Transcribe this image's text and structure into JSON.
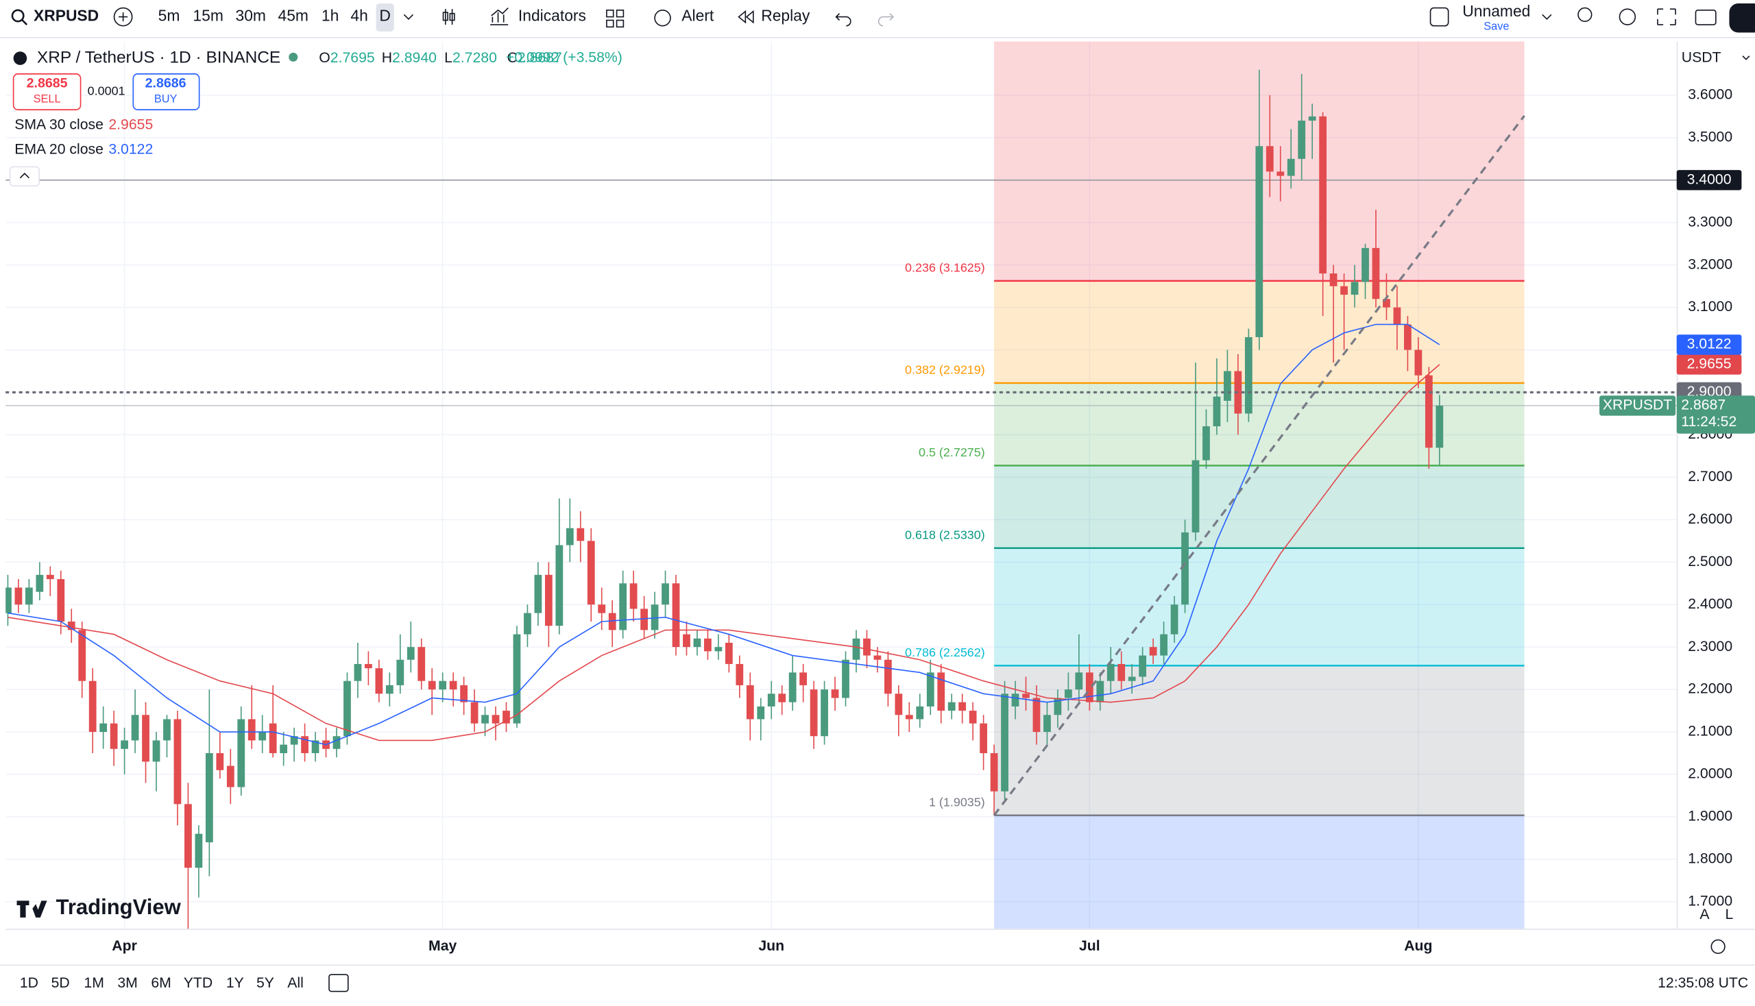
{
  "toolbar": {
    "symbol": "XRPUSD",
    "intervals": [
      "5m",
      "15m",
      "30m",
      "45m",
      "1h",
      "4h",
      "D"
    ],
    "active_interval": "D",
    "indicators": "Indicators",
    "alert": "Alert",
    "replay": "Replay",
    "layout_name": "Unnamed",
    "save": "Save"
  },
  "legend": {
    "title": "XRP / TetherUS · 1D · BINANCE",
    "ohlc": [
      {
        "label": "O",
        "value": "2.7695"
      },
      {
        "label": "H",
        "value": "2.8940"
      },
      {
        "label": "L",
        "value": "2.7280"
      },
      {
        "label": "C",
        "value": "2.8687"
      }
    ],
    "change": "+0.0992 (+3.58%)",
    "sell": {
      "price": "2.8685",
      "label": "SELL"
    },
    "spread": "0.0001",
    "buy": {
      "price": "2.8686",
      "label": "BUY"
    }
  },
  "chart_data": {
    "type": "candlestick",
    "currency": "USDT",
    "logo": "TradingView",
    "grid": true,
    "ylim": [
      1.6364,
      3.7265
    ],
    "yticks": [
      {
        "value": 1.7,
        "label": "1.7000"
      },
      {
        "value": 1.8,
        "label": "1.8000"
      },
      {
        "value": 1.9,
        "label": "1.9000"
      },
      {
        "value": 2.0,
        "label": "2.0000"
      },
      {
        "value": 2.1,
        "label": "2.1000"
      },
      {
        "value": 2.2,
        "label": "2.2000"
      },
      {
        "value": 2.3,
        "label": "2.3000"
      },
      {
        "value": 2.4,
        "label": "2.4000"
      },
      {
        "value": 2.5,
        "label": "2.5000"
      },
      {
        "value": 2.6,
        "label": "2.6000"
      },
      {
        "value": 2.7,
        "label": "2.7000"
      },
      {
        "value": 2.8,
        "label": "2.8000"
      },
      {
        "value": 2.9,
        "label": "2.9000"
      },
      {
        "value": 3.0,
        "label": "3.0000"
      },
      {
        "value": 3.1,
        "label": "3.1000"
      },
      {
        "value": 3.2,
        "label": "3.2000"
      },
      {
        "value": 3.3,
        "label": "3.3000"
      },
      {
        "value": 3.4,
        "label": "3.4000"
      },
      {
        "value": 3.5,
        "label": "3.5000"
      },
      {
        "value": 3.6,
        "label": "3.6000"
      }
    ],
    "categories": [
      null,
      null,
      null,
      null,
      null,
      null,
      null,
      null,
      null,
      null,
      null,
      "Apr",
      null,
      null,
      null,
      null,
      null,
      null,
      null,
      null,
      null,
      null,
      null,
      null,
      null,
      null,
      null,
      null,
      null,
      null,
      null,
      null,
      null,
      null,
      null,
      null,
      null,
      null,
      null,
      null,
      null,
      "May",
      null,
      null,
      null,
      null,
      null,
      null,
      null,
      null,
      null,
      null,
      null,
      null,
      null,
      null,
      null,
      null,
      null,
      null,
      null,
      null,
      null,
      null,
      null,
      null,
      null,
      null,
      null,
      null,
      null,
      null,
      "Jun",
      null,
      null,
      null,
      null,
      null,
      null,
      null,
      null,
      null,
      null,
      null,
      null,
      null,
      null,
      null,
      null,
      null,
      null,
      null,
      null,
      null,
      null,
      null,
      null,
      null,
      null,
      null,
      null,
      null,
      "Jul",
      null,
      null,
      null,
      null,
      null,
      null,
      null,
      null,
      null,
      null,
      null,
      null,
      null,
      null,
      null,
      null,
      null,
      null,
      null,
      null,
      null,
      null,
      null,
      null,
      null,
      null,
      null,
      null,
      null,
      null,
      "Aug",
      null,
      null
    ],
    "series": [
      {
        "name": "XRPUSDT",
        "up_color": "#4a9a7e",
        "down_color": "#e24c4f",
        "open": [
          2.38,
          2.44,
          2.4,
          2.43,
          2.47,
          2.46,
          2.36,
          2.34,
          2.22,
          2.1,
          2.12,
          2.06,
          2.08,
          2.14,
          2.03,
          2.08,
          2.13,
          1.93,
          1.78,
          1.84,
          2.05,
          2.02,
          1.97,
          2.13,
          2.08,
          2.12,
          2.05,
          2.07,
          2.09,
          2.05,
          2.08,
          2.06,
          2.09,
          2.22,
          2.26,
          2.25,
          2.19,
          2.21,
          2.27,
          2.3,
          2.22,
          2.2,
          2.22,
          2.21,
          2.17,
          2.12,
          2.14,
          2.15,
          2.12,
          2.33,
          2.38,
          2.47,
          2.35,
          2.54,
          2.58,
          2.55,
          2.4,
          2.38,
          2.34,
          2.45,
          2.39,
          2.34,
          2.4,
          2.45,
          2.33,
          2.3,
          2.32,
          2.29,
          2.31,
          2.26,
          2.21,
          2.13,
          2.16,
          2.19,
          2.17,
          2.24,
          2.2,
          2.09,
          2.2,
          2.18,
          2.27,
          2.32,
          2.28,
          2.27,
          2.19,
          2.14,
          2.13,
          2.16,
          2.24,
          2.15,
          2.17,
          2.15,
          2.12,
          2.05,
          1.96,
          2.16,
          2.19,
          2.18,
          2.1,
          2.14,
          2.18,
          2.2,
          2.24,
          2.17,
          2.22,
          2.26,
          2.22,
          2.23,
          2.3,
          2.28,
          2.33,
          2.4,
          2.57,
          2.74,
          2.82,
          2.88,
          2.95,
          2.85,
          3.03,
          3.48,
          3.42,
          3.41,
          3.45,
          3.54,
          3.55,
          3.18,
          3.15,
          3.13,
          3.16,
          3.24,
          3.12,
          3.1,
          3.06,
          3.0,
          2.94,
          2.7695
        ],
        "high": [
          2.47,
          2.46,
          2.46,
          2.5,
          2.49,
          2.48,
          2.39,
          2.36,
          2.25,
          2.16,
          2.15,
          2.11,
          2.2,
          2.17,
          2.1,
          2.14,
          2.15,
          1.98,
          1.88,
          2.2,
          2.1,
          2.06,
          2.16,
          2.21,
          2.14,
          2.21,
          2.1,
          2.11,
          2.12,
          2.1,
          2.11,
          2.11,
          2.24,
          2.31,
          2.29,
          2.27,
          2.24,
          2.33,
          2.36,
          2.32,
          2.25,
          2.24,
          2.24,
          2.23,
          2.2,
          2.16,
          2.16,
          2.17,
          2.35,
          2.4,
          2.5,
          2.5,
          2.65,
          2.65,
          2.62,
          2.58,
          2.44,
          2.41,
          2.48,
          2.48,
          2.42,
          2.43,
          2.48,
          2.47,
          2.36,
          2.34,
          2.34,
          2.33,
          2.33,
          2.28,
          2.24,
          2.18,
          2.22,
          2.21,
          2.28,
          2.26,
          2.22,
          2.22,
          2.23,
          2.29,
          2.34,
          2.34,
          2.3,
          2.29,
          2.21,
          2.17,
          2.19,
          2.27,
          2.26,
          2.19,
          2.19,
          2.17,
          2.14,
          2.07,
          2.22,
          2.22,
          2.23,
          2.21,
          2.17,
          2.2,
          2.24,
          2.33,
          2.26,
          2.24,
          2.3,
          2.29,
          2.26,
          2.3,
          2.32,
          2.36,
          2.42,
          2.6,
          2.97,
          2.86,
          2.98,
          3.0,
          2.99,
          3.05,
          3.66,
          3.6,
          3.48,
          3.52,
          3.65,
          3.58,
          3.56,
          3.2,
          3.18,
          3.2,
          3.25,
          3.33,
          3.18,
          3.15,
          3.08,
          3.03,
          2.96,
          2.894
        ],
        "low": [
          2.35,
          2.38,
          2.38,
          2.41,
          2.42,
          2.33,
          2.31,
          2.18,
          2.05,
          2.06,
          2.02,
          2.0,
          2.05,
          1.98,
          1.96,
          2.04,
          1.88,
          1.61,
          1.71,
          1.76,
          1.99,
          1.93,
          1.95,
          2.06,
          2.05,
          2.04,
          2.02,
          2.03,
          2.03,
          2.03,
          2.04,
          2.04,
          2.07,
          2.18,
          2.21,
          2.17,
          2.16,
          2.19,
          2.24,
          2.2,
          2.14,
          2.17,
          2.16,
          2.14,
          2.1,
          2.09,
          2.08,
          2.1,
          2.11,
          2.3,
          2.35,
          2.3,
          2.33,
          2.5,
          2.5,
          2.36,
          2.34,
          2.3,
          2.32,
          2.36,
          2.32,
          2.32,
          2.37,
          2.28,
          2.28,
          2.28,
          2.27,
          2.27,
          2.24,
          2.18,
          2.08,
          2.08,
          2.13,
          2.14,
          2.15,
          2.17,
          2.06,
          2.07,
          2.15,
          2.16,
          2.24,
          2.25,
          2.24,
          2.16,
          2.09,
          2.1,
          2.11,
          2.14,
          2.12,
          2.13,
          2.12,
          2.08,
          2.01,
          1.9035,
          1.94,
          2.13,
          2.15,
          2.07,
          2.07,
          2.11,
          2.15,
          2.17,
          2.15,
          2.15,
          2.19,
          2.2,
          2.19,
          2.21,
          2.26,
          2.26,
          2.31,
          2.38,
          2.55,
          2.72,
          2.8,
          2.83,
          2.8,
          2.83,
          3.0,
          3.36,
          3.35,
          3.38,
          3.4,
          3.45,
          3.08,
          2.97,
          3.0,
          3.1,
          3.12,
          3.1,
          3.07,
          3.0,
          2.95,
          2.91,
          2.72,
          2.728
        ],
        "close": [
          2.44,
          2.4,
          2.44,
          2.47,
          2.46,
          2.36,
          2.34,
          2.22,
          2.1,
          2.12,
          2.06,
          2.08,
          2.14,
          2.03,
          2.08,
          2.13,
          1.93,
          1.78,
          1.86,
          2.05,
          2.01,
          1.97,
          2.13,
          2.08,
          2.1,
          2.05,
          2.07,
          2.09,
          2.05,
          2.08,
          2.06,
          2.09,
          2.22,
          2.26,
          2.25,
          2.19,
          2.21,
          2.27,
          2.3,
          2.22,
          2.2,
          2.22,
          2.2,
          2.17,
          2.12,
          2.14,
          2.12,
          2.12,
          2.33,
          2.38,
          2.47,
          2.35,
          2.54,
          2.58,
          2.55,
          2.4,
          2.38,
          2.34,
          2.45,
          2.39,
          2.34,
          2.4,
          2.45,
          2.3,
          2.3,
          2.32,
          2.29,
          2.3,
          2.26,
          2.21,
          2.13,
          2.16,
          2.19,
          2.17,
          2.24,
          2.21,
          2.09,
          2.2,
          2.18,
          2.27,
          2.32,
          2.28,
          2.27,
          2.19,
          2.14,
          2.13,
          2.16,
          2.24,
          2.15,
          2.17,
          2.15,
          2.12,
          2.05,
          1.96,
          2.19,
          2.19,
          2.18,
          2.1,
          2.14,
          2.18,
          2.2,
          2.24,
          2.17,
          2.22,
          2.26,
          2.22,
          2.23,
          2.28,
          2.28,
          2.33,
          2.4,
          2.57,
          2.74,
          2.82,
          2.89,
          2.95,
          2.85,
          3.03,
          3.48,
          3.42,
          3.41,
          3.45,
          3.54,
          3.55,
          3.18,
          3.15,
          3.13,
          3.16,
          3.24,
          3.12,
          3.1,
          3.06,
          3.0,
          2.94,
          2.7695,
          2.8687
        ],
        "last": {
          "value": 2.8687,
          "label": "2.8687",
          "countdown": "11:24:52",
          "line_color": "#4a9a7e"
        }
      }
    ],
    "indicators": [
      {
        "name": "SMA 30 close",
        "color": "#e2474c",
        "last_label": "2.9655",
        "x": [
          0,
          5,
          10,
          15,
          20,
          25,
          30,
          35,
          40,
          45,
          48,
          52,
          56,
          62,
          68,
          74,
          80,
          86,
          92,
          98,
          104,
          108,
          111,
          114,
          117,
          120,
          123,
          126,
          129,
          132,
          135
        ],
        "values": [
          2.37,
          2.35,
          2.33,
          2.27,
          2.22,
          2.19,
          2.12,
          2.08,
          2.08,
          2.1,
          2.14,
          2.22,
          2.28,
          2.34,
          2.34,
          2.32,
          2.3,
          2.27,
          2.22,
          2.18,
          2.17,
          2.18,
          2.22,
          2.3,
          2.4,
          2.52,
          2.62,
          2.72,
          2.81,
          2.9,
          2.9655
        ]
      },
      {
        "name": "EMA 20 close",
        "color": "#2962ff",
        "last_label": "3.0122",
        "x": [
          0,
          5,
          10,
          15,
          20,
          25,
          30,
          35,
          40,
          45,
          48,
          52,
          56,
          62,
          68,
          74,
          80,
          86,
          92,
          98,
          104,
          108,
          111,
          114,
          117,
          120,
          123,
          126,
          129,
          132,
          135
        ],
        "values": [
          2.38,
          2.36,
          2.28,
          2.18,
          2.1,
          2.1,
          2.07,
          2.12,
          2.18,
          2.17,
          2.19,
          2.3,
          2.36,
          2.37,
          2.33,
          2.28,
          2.26,
          2.24,
          2.19,
          2.17,
          2.19,
          2.22,
          2.33,
          2.55,
          2.72,
          2.92,
          3.0,
          3.04,
          3.06,
          3.06,
          3.0122
        ]
      }
    ],
    "fib": {
      "x": [
        93,
        143
      ],
      "below_color": "#2962ff",
      "levels": [
        {
          "value": 3.1625,
          "label": "0.236 (3.1625)",
          "color": "#f23645"
        },
        {
          "value": 2.9219,
          "label": "0.382 (2.9219)",
          "color": "#ff9800"
        },
        {
          "value": 2.7275,
          "label": "0.5 (2.7275)",
          "color": "#4caf50"
        },
        {
          "value": 2.533,
          "label": "0.618 (2.5330)",
          "color": "#089981"
        },
        {
          "value": 2.2562,
          "label": "0.786 (2.2562)",
          "color": "#00bcd4"
        },
        {
          "value": 1.9035,
          "label": "1 (1.9035)",
          "color": "#787b86"
        }
      ]
    },
    "trend_line": {
      "x": [
        93,
        143
      ],
      "values": [
        1.9035,
        3.5515
      ]
    },
    "horizontal_line": {
      "value": 3.4,
      "label": "3.4000"
    },
    "crosshair": {
      "value": 2.9,
      "label": "2.9000"
    }
  },
  "bottom_bar": {
    "ranges": [
      "1D",
      "5D",
      "1M",
      "3M",
      "6M",
      "YTD",
      "1Y",
      "5Y",
      "All"
    ],
    "clock": "12:35:08 UTC",
    "scale_auto": "A",
    "scale_log": "L"
  }
}
